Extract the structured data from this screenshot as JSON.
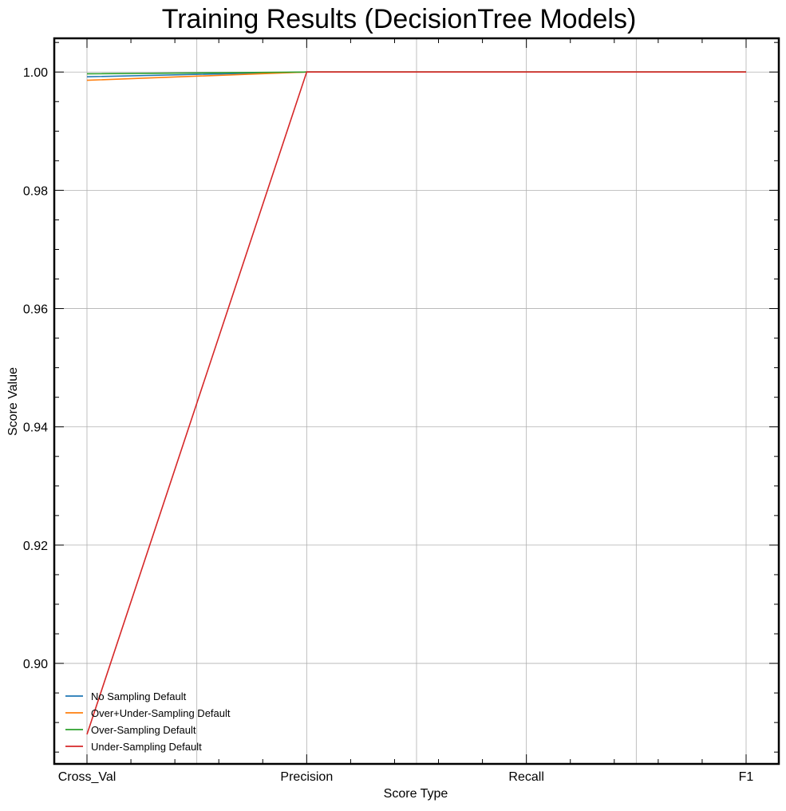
{
  "chart_data": {
    "type": "line",
    "title": "Training Results (DecisionTree Models)",
    "xlabel": "Score Type",
    "ylabel": "Score Value",
    "categories": [
      "Cross_Val",
      "Precision",
      "Recall",
      "F1"
    ],
    "ylim": [
      0.883,
      1.0057
    ],
    "yticks": [
      0.9,
      0.92,
      0.94,
      0.96,
      0.98,
      1.0
    ],
    "ytick_labels": [
      "0.90",
      "0.92",
      "0.94",
      "0.96",
      "0.98",
      "1.00"
    ],
    "grid": true,
    "legend_location": "lower-left",
    "series": [
      {
        "name": "No Sampling Default",
        "color": "#1f77b4",
        "values": [
          0.9992,
          1.0,
          1.0,
          1.0
        ]
      },
      {
        "name": "Over+Under-Sampling Default",
        "color": "#ff7f0e",
        "values": [
          0.9986,
          1.0,
          1.0,
          1.0
        ]
      },
      {
        "name": "Over-Sampling Default",
        "color": "#2ca02c",
        "values": [
          0.9997,
          1.0,
          1.0,
          1.0
        ]
      },
      {
        "name": "Under-Sampling Default",
        "color": "#d62728",
        "values": [
          0.888,
          1.0,
          1.0,
          1.0
        ]
      }
    ]
  }
}
